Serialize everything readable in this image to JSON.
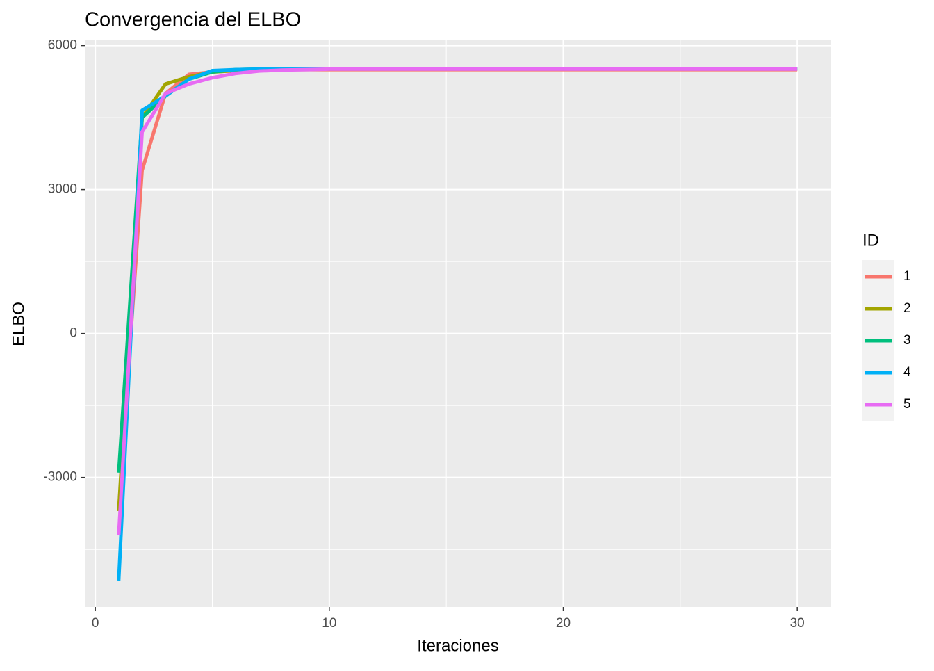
{
  "chart_data": {
    "type": "line",
    "title": "Convergencia del ELBO",
    "x_label": "Iteraciones",
    "y_label": "ELBO",
    "legend_title": "ID",
    "x": [
      1,
      2,
      3,
      4,
      5,
      6,
      7,
      8,
      9,
      10,
      11,
      12,
      13,
      14,
      15,
      16,
      17,
      18,
      19,
      20,
      21,
      22,
      23,
      24,
      25,
      26,
      27,
      28,
      29,
      30
    ],
    "series": [
      {
        "name": "1",
        "color": "#F8766D",
        "values": [
          -3700,
          3400,
          5000,
          5400,
          5450,
          5480,
          5490,
          5500,
          5500,
          5500,
          5500,
          5500,
          5500,
          5500,
          5500,
          5500,
          5500,
          5500,
          5500,
          5500,
          5500,
          5500,
          5500,
          5500,
          5500,
          5500,
          5500,
          5500,
          5500,
          5500
        ]
      },
      {
        "name": "2",
        "color": "#A3A500",
        "values": [
          -3700,
          4500,
          5200,
          5350,
          5450,
          5480,
          5500,
          5500,
          5510,
          5510,
          5510,
          5510,
          5510,
          5510,
          5510,
          5510,
          5510,
          5510,
          5510,
          5510,
          5510,
          5510,
          5510,
          5510,
          5510,
          5510,
          5510,
          5510,
          5510,
          5510
        ]
      },
      {
        "name": "3",
        "color": "#00BF7D",
        "values": [
          -2900,
          4500,
          4950,
          5300,
          5450,
          5500,
          5510,
          5520,
          5520,
          5520,
          5520,
          5520,
          5520,
          5520,
          5520,
          5520,
          5520,
          5520,
          5520,
          5520,
          5520,
          5520,
          5520,
          5520,
          5520,
          5520,
          5520,
          5520,
          5520,
          5520
        ]
      },
      {
        "name": "4",
        "color": "#00B0F6",
        "values": [
          -5150,
          4650,
          4950,
          5300,
          5480,
          5500,
          5510,
          5520,
          5520,
          5520,
          5520,
          5520,
          5520,
          5520,
          5520,
          5520,
          5520,
          5520,
          5520,
          5520,
          5520,
          5520,
          5520,
          5520,
          5520,
          5520,
          5520,
          5520,
          5520,
          5520
        ]
      },
      {
        "name": "5",
        "color": "#E76BF3",
        "values": [
          -4200,
          4200,
          5000,
          5200,
          5330,
          5420,
          5470,
          5490,
          5500,
          5510,
          5510,
          5510,
          5510,
          5510,
          5510,
          5510,
          5510,
          5510,
          5510,
          5510,
          5510,
          5510,
          5510,
          5510,
          5510,
          5510,
          5510,
          5510,
          5510,
          5510
        ]
      }
    ],
    "xlim": [
      -0.45,
      31.45
    ],
    "xticks": [
      0,
      10,
      20,
      30
    ],
    "ylim": [
      -5700,
      6110
    ],
    "yticks": [
      -3000,
      0,
      3000,
      6000
    ],
    "grid": true
  }
}
